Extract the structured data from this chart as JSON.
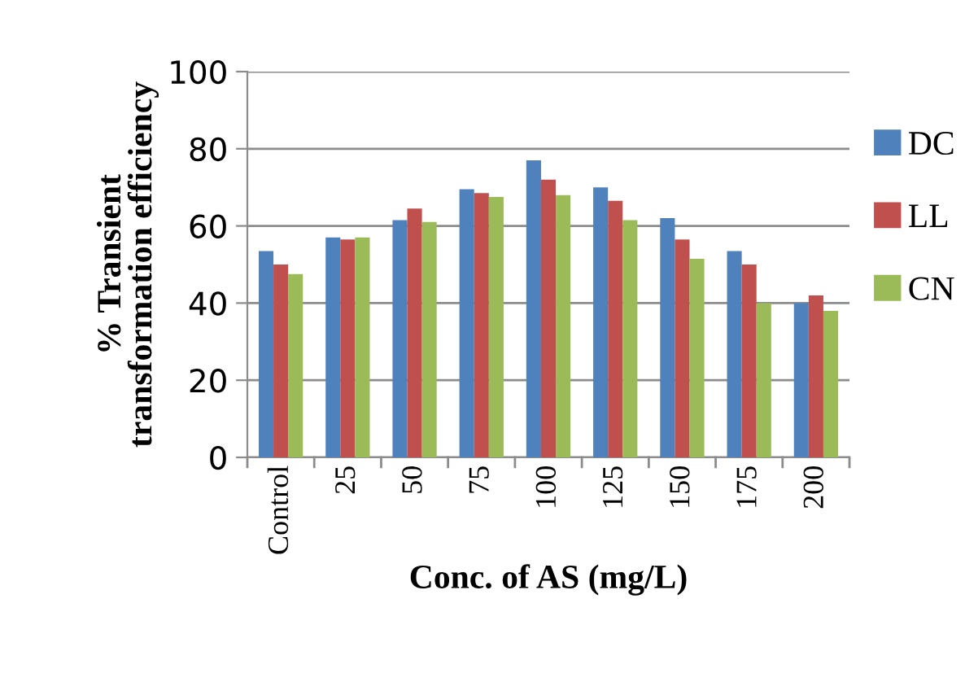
{
  "chart_data": {
    "type": "bar",
    "xlabel": "Conc. of AS (mg/L)",
    "ylabel": "% Transient\ntransformation efficiency",
    "categories": [
      "Control",
      "25",
      "50",
      "75",
      "100",
      "125",
      "150",
      "175",
      "200"
    ],
    "series": [
      {
        "name": "DC",
        "color": "#4f81bd",
        "values": [
          53.5,
          57,
          61.5,
          69.5,
          77,
          70,
          62,
          53.5,
          40
        ]
      },
      {
        "name": "LL",
        "color": "#c0504d",
        "values": [
          50,
          56.5,
          64.5,
          68.5,
          72,
          66.5,
          56.5,
          50,
          42
        ]
      },
      {
        "name": "CN",
        "color": "#9bbb59",
        "values": [
          47.5,
          57,
          61,
          67.5,
          68,
          61.5,
          51.5,
          40,
          38
        ]
      }
    ],
    "ylim": [
      0,
      100
    ],
    "yticks": [
      0,
      20,
      40,
      60,
      80,
      100
    ],
    "grid": "y",
    "legend": "right"
  }
}
